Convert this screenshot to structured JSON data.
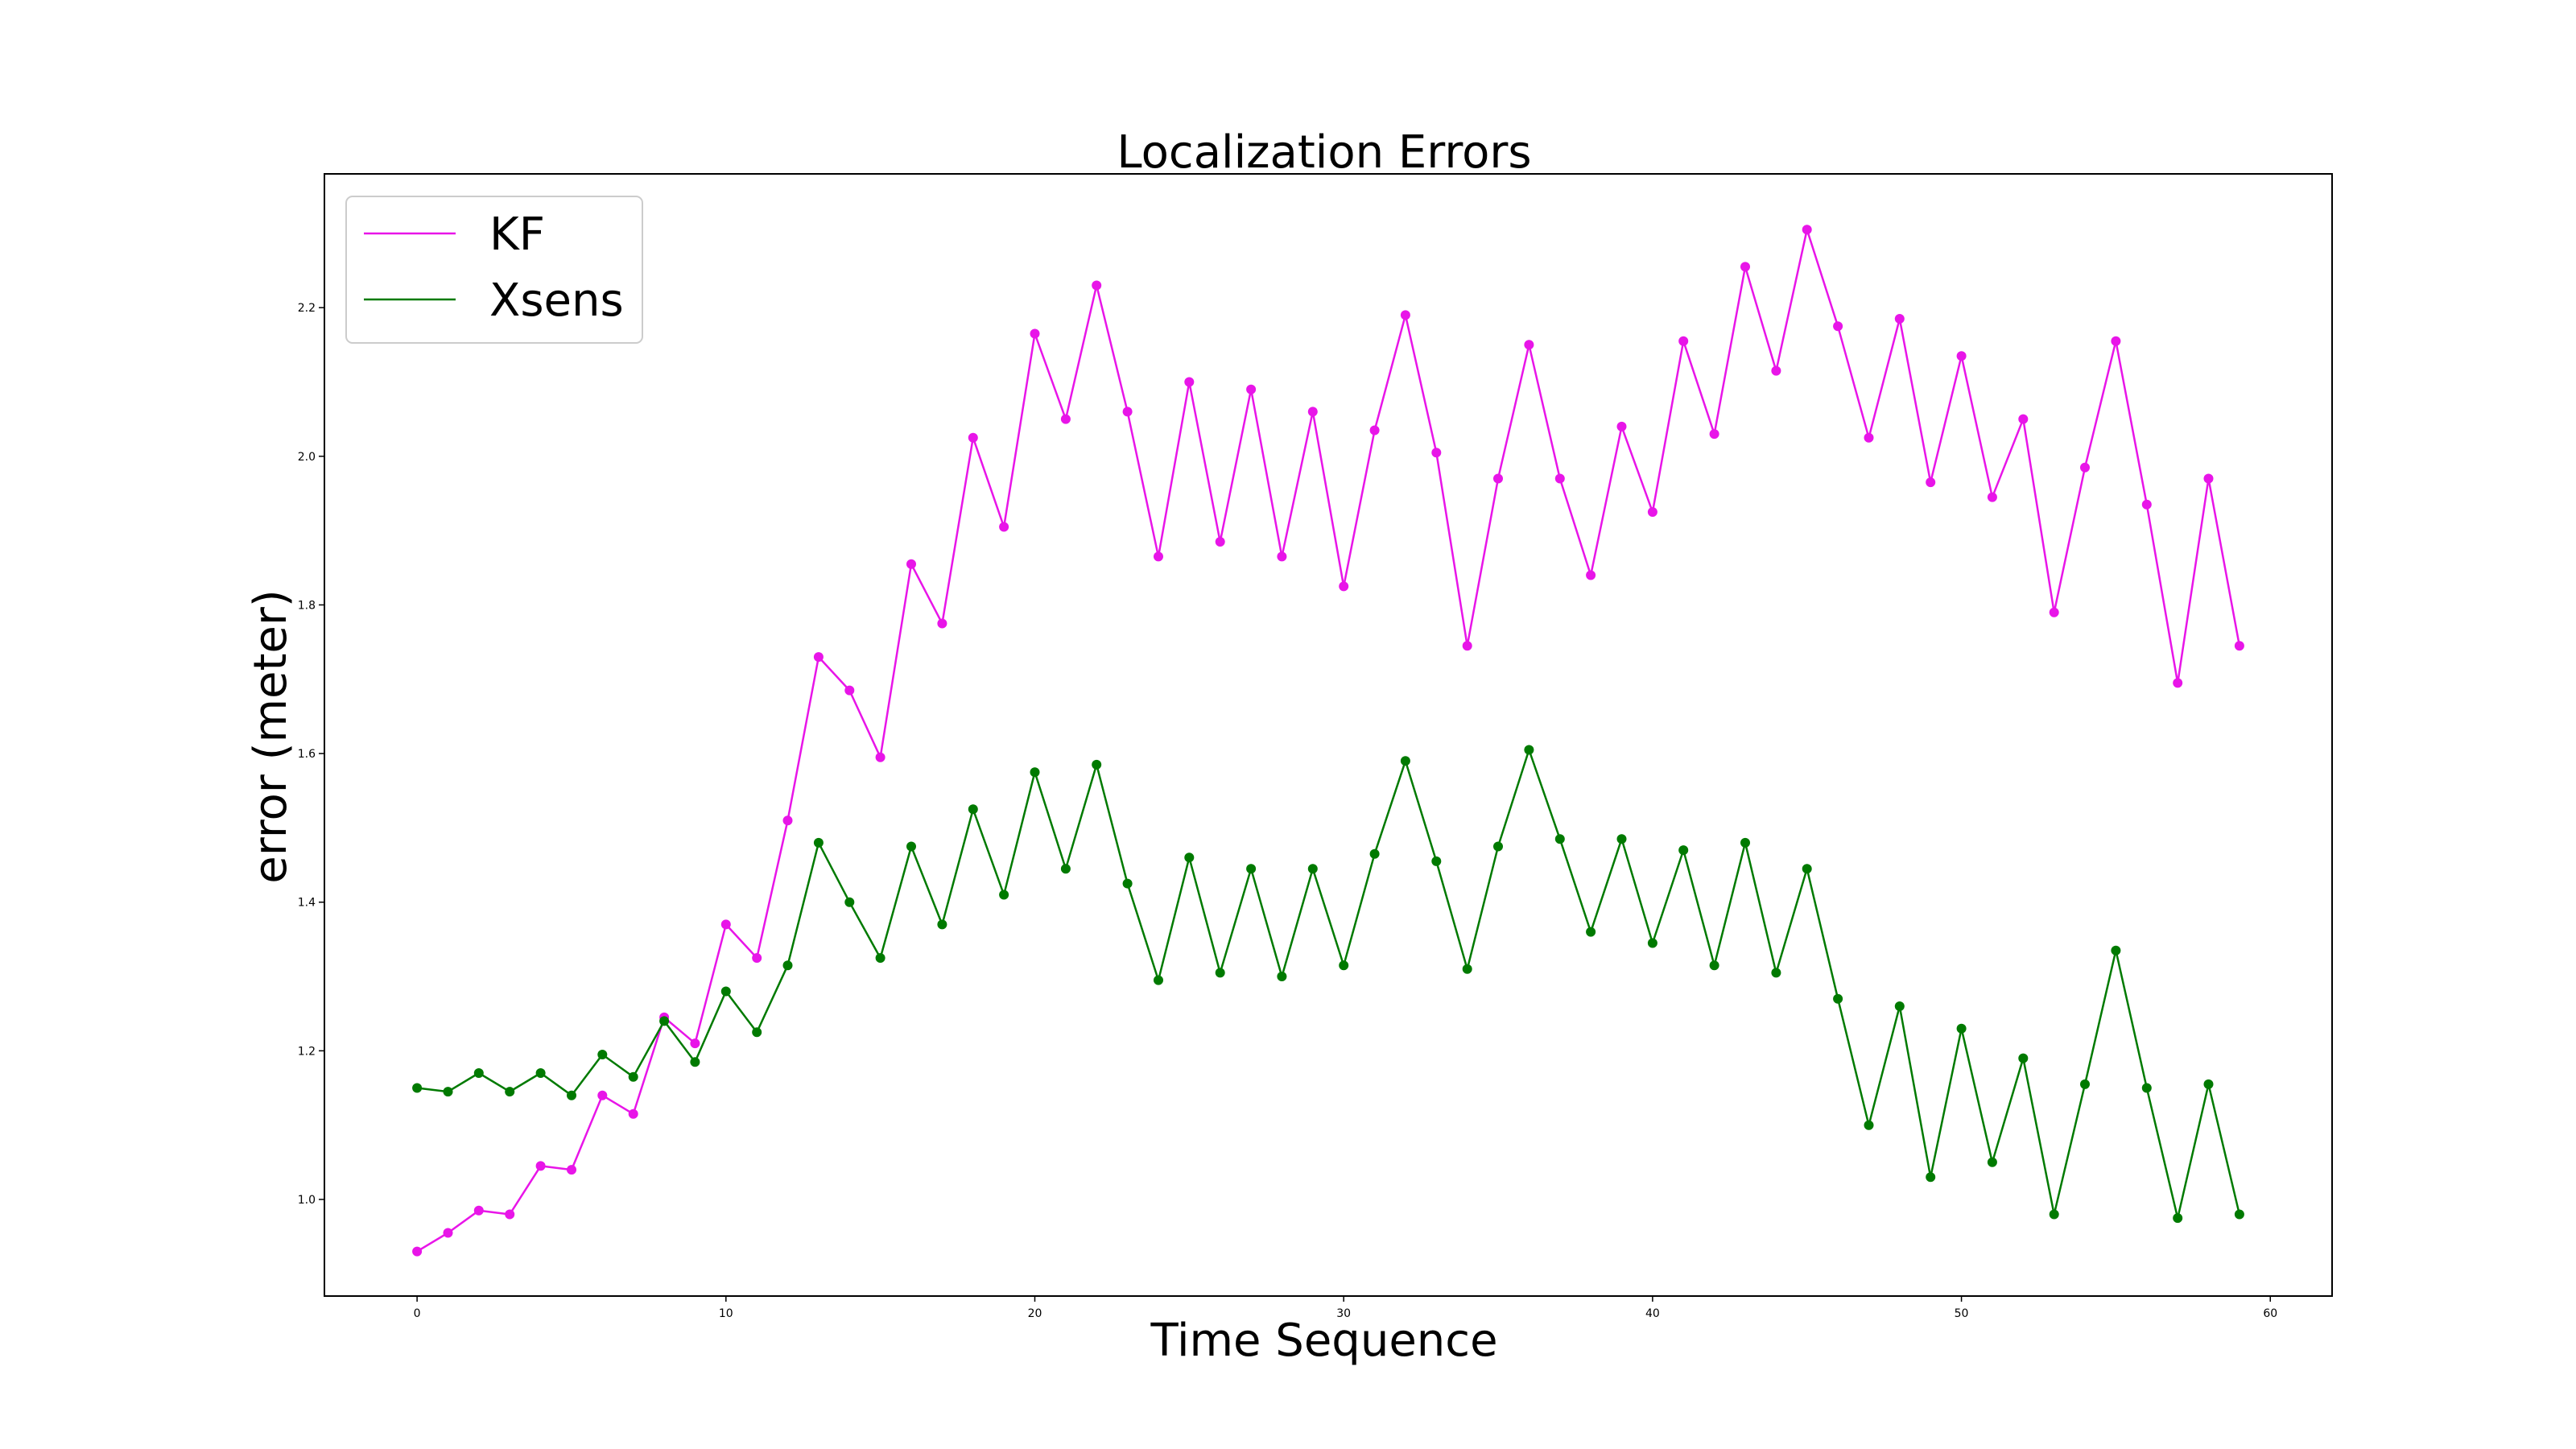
{
  "chart_data": {
    "type": "line",
    "title": "Localization Errors",
    "xlabel": "Time Sequence",
    "ylabel": "error (meter)",
    "xlim": [
      -3,
      62
    ],
    "ylim": [
      0.87,
      2.38
    ],
    "xticks": [
      0,
      10,
      20,
      30,
      40,
      50,
      60
    ],
    "yticks": [
      1.0,
      1.2,
      1.4,
      1.6,
      1.8,
      2.0,
      2.2
    ],
    "legend_position": "top-left",
    "grid": false,
    "x": [
      0,
      1,
      2,
      3,
      4,
      5,
      6,
      7,
      8,
      9,
      10,
      11,
      12,
      13,
      14,
      15,
      16,
      17,
      18,
      19,
      20,
      21,
      22,
      23,
      24,
      25,
      26,
      27,
      28,
      29,
      30,
      31,
      32,
      33,
      34,
      35,
      36,
      37,
      38,
      39,
      40,
      41,
      42,
      43,
      44,
      45,
      46,
      47,
      48,
      49,
      50,
      51,
      52,
      53,
      54,
      55,
      56,
      57,
      58,
      59
    ],
    "series": [
      {
        "name": "KF",
        "color": "#e815e8",
        "values": [
          0.93,
          0.955,
          0.985,
          0.98,
          1.045,
          1.04,
          1.14,
          1.115,
          1.245,
          1.21,
          1.37,
          1.325,
          1.51,
          1.73,
          1.685,
          1.595,
          1.855,
          1.775,
          2.025,
          1.905,
          2.165,
          2.05,
          2.23,
          2.06,
          1.865,
          2.1,
          1.885,
          2.09,
          1.865,
          2.06,
          1.825,
          2.035,
          2.19,
          2.005,
          1.745,
          1.97,
          2.15,
          1.97,
          1.84,
          2.04,
          1.925,
          2.155,
          2.03,
          2.255,
          2.115,
          2.305,
          2.175,
          2.025,
          2.185,
          1.965,
          2.135,
          1.945,
          2.05,
          1.79,
          1.985,
          2.155,
          1.935,
          1.695,
          1.97,
          1.745
        ]
      },
      {
        "name": "Xsens",
        "color": "#007a00",
        "values": [
          1.15,
          1.145,
          1.17,
          1.145,
          1.17,
          1.14,
          1.195,
          1.165,
          1.24,
          1.185,
          1.28,
          1.225,
          1.315,
          1.48,
          1.4,
          1.325,
          1.475,
          1.37,
          1.525,
          1.41,
          1.575,
          1.445,
          1.585,
          1.425,
          1.295,
          1.46,
          1.305,
          1.445,
          1.3,
          1.445,
          1.315,
          1.465,
          1.59,
          1.455,
          1.31,
          1.475,
          1.605,
          1.485,
          1.36,
          1.485,
          1.345,
          1.47,
          1.315,
          1.48,
          1.305,
          1.445,
          1.27,
          1.1,
          1.26,
          1.03,
          1.23,
          1.05,
          1.19,
          0.98,
          1.155,
          1.335,
          1.15,
          0.975,
          1.155,
          0.98
        ]
      }
    ]
  }
}
